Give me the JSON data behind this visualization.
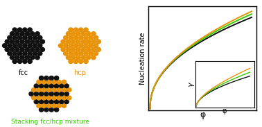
{
  "background_color": "#ffffff",
  "fcc_color": "#111111",
  "hcp_color": "#e8930a",
  "fcc_label": "fcc",
  "hcp_label": "hcp",
  "mix_label": "Stacking fcc/hcp mixture",
  "mix_label_color": "#33cc00",
  "plot_lines": [
    {
      "color": "#111111",
      "lw": 1.4
    },
    {
      "color": "#33cc00",
      "lw": 1.4
    },
    {
      "color": "#e8930a",
      "lw": 1.4
    }
  ],
  "inset_lines": [
    {
      "color": "#111111",
      "lw": 1.0
    },
    {
      "color": "#33cc00",
      "lw": 1.0
    },
    {
      "color": "#e8930a",
      "lw": 1.0
    }
  ],
  "xlabel": "φ",
  "ylabel": "Nucleation rate",
  "inset_xlabel": "φ",
  "inset_ylabel": "γ",
  "axis_fontsize": 7,
  "label_fontsize": 7.0,
  "mix_label_fontsize": 6.5
}
